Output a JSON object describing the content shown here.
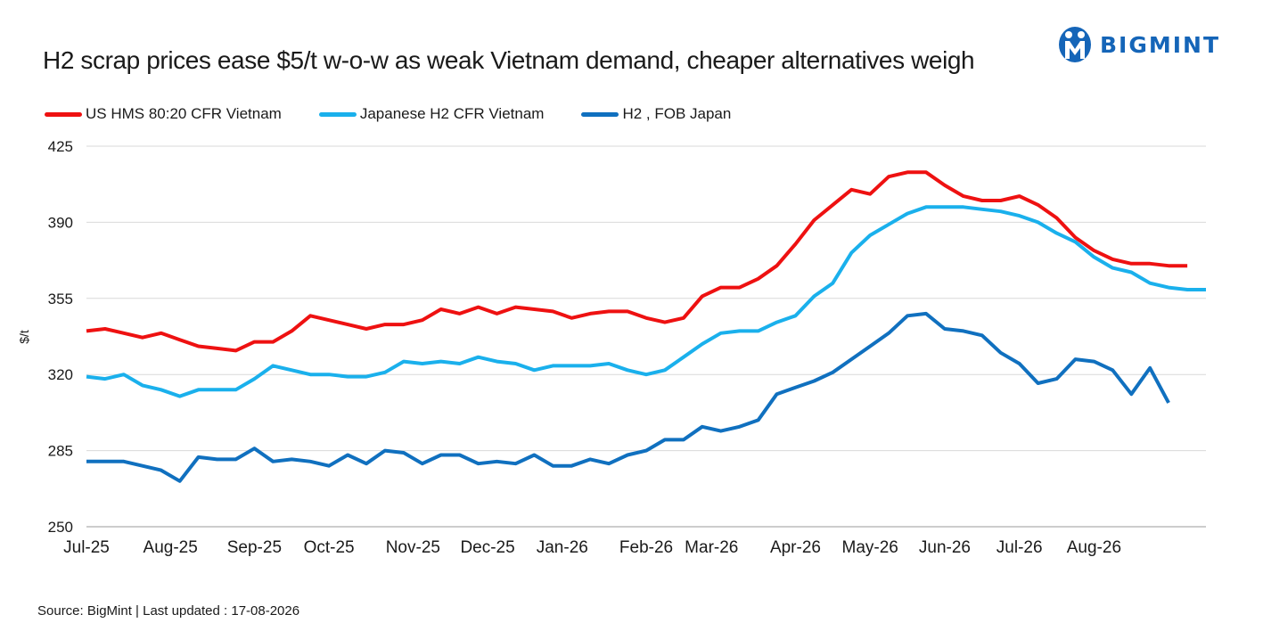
{
  "header": {
    "title": "H2 scrap prices ease $5/t w-o-w as weak Vietnam demand, cheaper alternatives weigh",
    "brand": "BIGMINT",
    "brand_icon": "bigmint-logo-icon",
    "brand_color": "#1565b8"
  },
  "footer": {
    "source": "Source: BigMint  | Last updated : 17-08-2026"
  },
  "chart_data": {
    "type": "line",
    "ylabel": "$/t",
    "ylim": [
      250,
      425
    ],
    "yticks": [
      250,
      285,
      320,
      355,
      390,
      425
    ],
    "grid": "horizontal",
    "legend_position": "top-left",
    "x_tick_labels": [
      {
        "label": "Jul-25",
        "index": 0
      },
      {
        "label": "Aug-25",
        "index": 4.5
      },
      {
        "label": "Sep-25",
        "index": 9
      },
      {
        "label": "Oct-25",
        "index": 13
      },
      {
        "label": "Nov-25",
        "index": 17.5
      },
      {
        "label": "Dec-25",
        "index": 21.5
      },
      {
        "label": "Jan-26",
        "index": 25.5
      },
      {
        "label": "Feb-26",
        "index": 30
      },
      {
        "label": "Mar-26",
        "index": 33.5
      },
      {
        "label": "Apr-26",
        "index": 38
      },
      {
        "label": "May-26",
        "index": 42
      },
      {
        "label": "Jun-26",
        "index": 46
      },
      {
        "label": "Jul-26",
        "index": 50
      },
      {
        "label": "Aug-26",
        "index": 54
      }
    ],
    "series": [
      {
        "name": "US HMS 80:20 CFR Vietnam",
        "color": "#ee1111",
        "values": [
          340,
          341,
          339,
          337,
          339,
          336,
          333,
          332,
          331,
          335,
          335,
          340,
          347,
          345,
          343,
          341,
          343,
          343,
          345,
          350,
          348,
          351,
          348,
          351,
          350,
          349,
          346,
          348,
          349,
          349,
          346,
          344,
          346,
          356,
          360,
          360,
          364,
          370,
          380,
          391,
          398,
          405,
          403,
          411,
          413,
          413,
          407,
          402,
          400,
          400,
          402,
          398,
          392,
          383,
          377,
          373,
          371,
          371,
          370,
          370
        ]
      },
      {
        "name": "Japanese H2 CFR Vietnam",
        "color": "#1ab0ec",
        "values": [
          319,
          318,
          320,
          315,
          313,
          310,
          313,
          313,
          313,
          318,
          324,
          322,
          320,
          320,
          319,
          319,
          321,
          326,
          325,
          326,
          325,
          328,
          326,
          325,
          322,
          324,
          324,
          324,
          325,
          322,
          320,
          322,
          328,
          334,
          339,
          340,
          340,
          344,
          347,
          356,
          362,
          376,
          384,
          389,
          394,
          397,
          397,
          397,
          396,
          395,
          393,
          390,
          385,
          381,
          374,
          369,
          367,
          362,
          360,
          359,
          359
        ]
      },
      {
        "name": "H2 , FOB Japan",
        "color": "#1070bf",
        "values": [
          280,
          280,
          280,
          278,
          276,
          271,
          282,
          281,
          281,
          286,
          280,
          281,
          280,
          278,
          283,
          279,
          285,
          284,
          279,
          283,
          283,
          279,
          280,
          279,
          283,
          278,
          278,
          281,
          279,
          283,
          285,
          290,
          290,
          296,
          294,
          296,
          299,
          311,
          314,
          317,
          321,
          327,
          333,
          339,
          347,
          348,
          341,
          340,
          338,
          330,
          325,
          316,
          318,
          327,
          326,
          322,
          311,
          323,
          307
        ]
      }
    ]
  }
}
